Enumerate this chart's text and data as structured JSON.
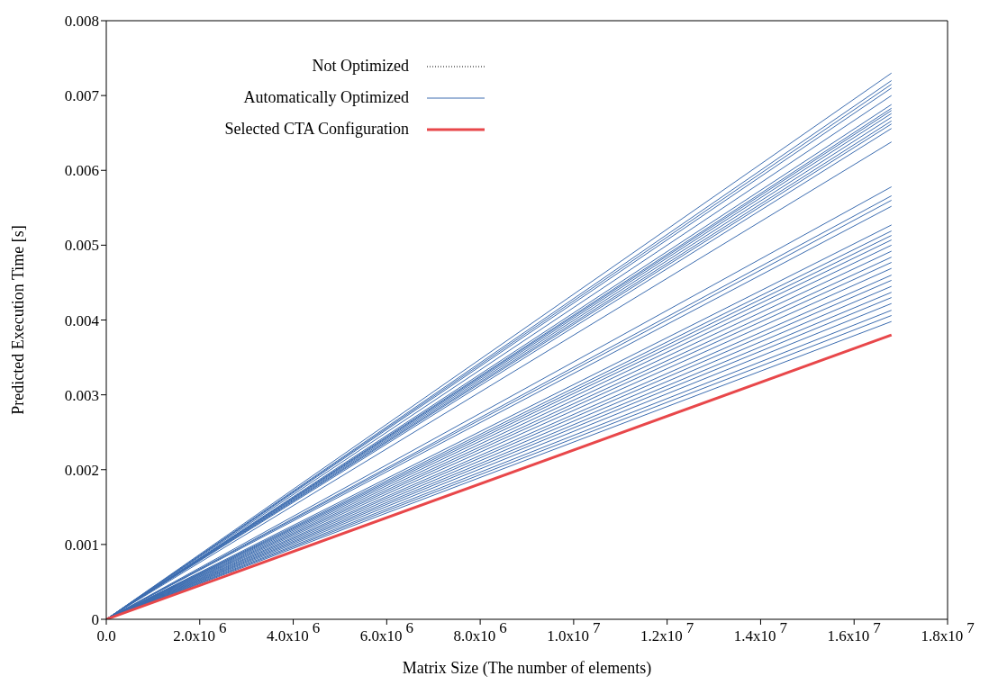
{
  "chart_data": {
    "type": "line",
    "xlabel": "Matrix Size (The number of elements)",
    "ylabel": "Predicted Execution Time [s]",
    "xlim": [
      0,
      18000000
    ],
    "xticks": [
      {
        "value": 0,
        "label": "0.0"
      },
      {
        "value": 2000000,
        "label": "2.0x10$^{6}$"
      },
      {
        "value": 4000000,
        "label": "4.0x10$^{6}$"
      },
      {
        "value": 6000000,
        "label": "6.0x10$^{6}$"
      },
      {
        "value": 8000000,
        "label": "8.0x10$^{6}$"
      },
      {
        "value": 10000000,
        "label": "1.0x10$^{7}$"
      },
      {
        "value": 12000000,
        "label": "1.2x10$^{7}$"
      },
      {
        "value": 14000000,
        "label": "1.4x10$^{7}$"
      },
      {
        "value": 16000000,
        "label": "1.6x10$^{7}$"
      },
      {
        "value": 18000000,
        "label": "1.8x10$^{7}$"
      }
    ],
    "ylim": [
      0,
      0.008
    ],
    "yticks": [
      0,
      0.001,
      0.002,
      0.003,
      0.004,
      0.005,
      0.006,
      0.007,
      0.008
    ],
    "legend": "top left",
    "marker": "none",
    "x": [
      0,
      16800000
    ],
    "series": [
      {
        "name": "Not Optimized",
        "color": "#000000",
        "line_style": "dotted",
        "values": [
          null,
          null
        ]
      },
      {
        "name": "Automatically Optimized",
        "color": "#3d6db0",
        "line_style": "solid",
        "values": [
          0,
          0.0073
        ]
      },
      {
        "color": "#3d6db0",
        "values": [
          0,
          0.0072
        ]
      },
      {
        "color": "#3d6db0",
        "values": [
          0,
          0.00715
        ]
      },
      {
        "color": "#3d6db0",
        "values": [
          0,
          0.0071
        ]
      },
      {
        "color": "#3d6db0",
        "values": [
          0,
          0.007
        ]
      },
      {
        "color": "#3d6db0",
        "values": [
          0,
          0.00688
        ]
      },
      {
        "color": "#3d6db0",
        "values": [
          0,
          0.00683
        ]
      },
      {
        "color": "#3d6db0",
        "values": [
          0,
          0.0068
        ]
      },
      {
        "color": "#3d6db0",
        "values": [
          0,
          0.00676
        ]
      },
      {
        "color": "#3d6db0",
        "values": [
          0,
          0.00671
        ]
      },
      {
        "color": "#3d6db0",
        "values": [
          0,
          0.00666
        ]
      },
      {
        "color": "#3d6db0",
        "values": [
          0,
          0.00662
        ]
      },
      {
        "color": "#3d6db0",
        "values": [
          0,
          0.00656
        ]
      },
      {
        "color": "#3d6db0",
        "values": [
          0,
          0.00638
        ]
      },
      {
        "color": "#3d6db0",
        "values": [
          0,
          0.00578
        ]
      },
      {
        "color": "#3d6db0",
        "values": [
          0,
          0.00566
        ]
      },
      {
        "color": "#3d6db0",
        "values": [
          0,
          0.0056
        ]
      },
      {
        "color": "#3d6db0",
        "values": [
          0,
          0.00552
        ]
      },
      {
        "color": "#3d6db0",
        "values": [
          0,
          0.00527
        ]
      },
      {
        "color": "#3d6db0",
        "values": [
          0,
          0.00519
        ]
      },
      {
        "color": "#3d6db0",
        "values": [
          0,
          0.00513
        ]
      },
      {
        "color": "#3d6db0",
        "values": [
          0,
          0.00507
        ]
      },
      {
        "color": "#3d6db0",
        "values": [
          0,
          0.005
        ]
      },
      {
        "color": "#3d6db0",
        "values": [
          0,
          0.00492
        ]
      },
      {
        "color": "#3d6db0",
        "values": [
          0,
          0.00484
        ]
      },
      {
        "color": "#3d6db0",
        "values": [
          0,
          0.00477
        ]
      },
      {
        "color": "#3d6db0",
        "values": [
          0,
          0.00469
        ]
      },
      {
        "color": "#3d6db0",
        "values": [
          0,
          0.0046
        ]
      },
      {
        "color": "#3d6db0",
        "values": [
          0,
          0.00453
        ]
      },
      {
        "color": "#3d6db0",
        "values": [
          0,
          0.00445
        ]
      },
      {
        "color": "#3d6db0",
        "values": [
          0,
          0.00437
        ]
      },
      {
        "color": "#3d6db0",
        "values": [
          0,
          0.0043
        ]
      },
      {
        "color": "#3d6db0",
        "values": [
          0,
          0.00422
        ]
      },
      {
        "color": "#3d6db0",
        "values": [
          0,
          0.00413
        ]
      },
      {
        "color": "#3d6db0",
        "values": [
          0,
          0.00406
        ]
      },
      {
        "color": "#3d6db0",
        "values": [
          0,
          0.00398
        ]
      },
      {
        "name": "Selected CTA Configuration",
        "color": "#e8474a",
        "line_style": "solid",
        "values": [
          0,
          0.0038
        ]
      }
    ]
  }
}
